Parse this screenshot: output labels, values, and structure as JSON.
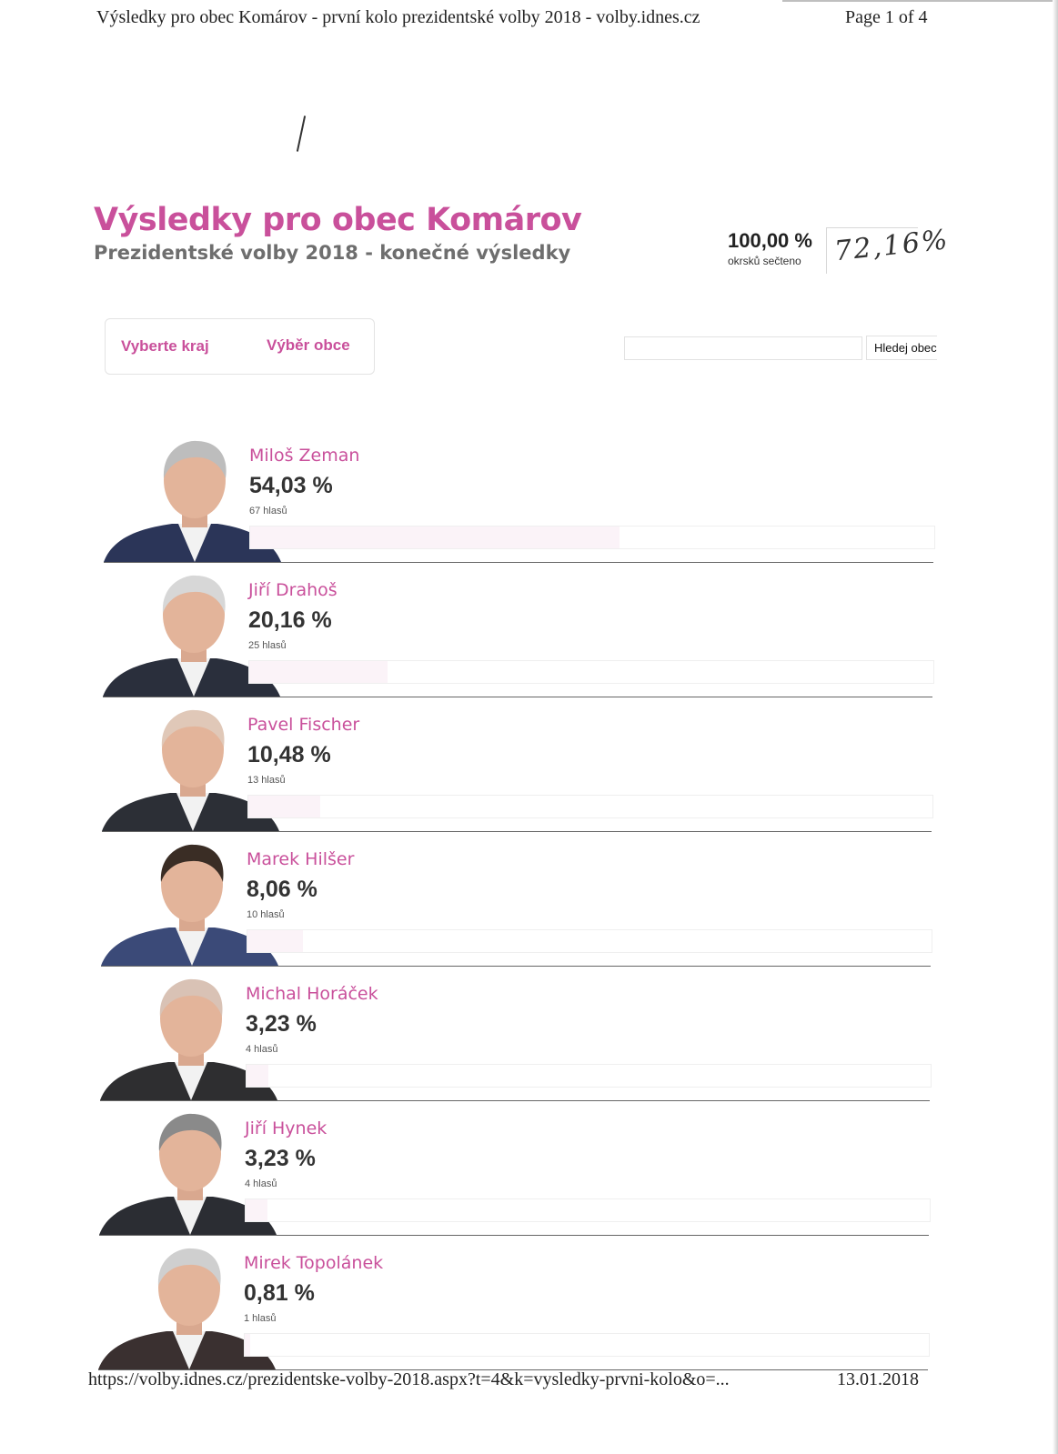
{
  "print_header": {
    "title": "Výsledky pro obec Komárov - první kolo prezidentské volby 2018 - volby.idnes.cz",
    "page": "Page 1 of 4"
  },
  "page_title": "Výsledky pro obec Komárov",
  "page_subtitle": "Prezidentské volby 2018 - konečné výsledky",
  "counted": {
    "value": "100,00 %",
    "label": "okrsků sečteno"
  },
  "handwritten_note": "72,16%",
  "selectors": {
    "region": "Vyberte kraj",
    "municipality": "Výběr obce"
  },
  "search": {
    "placeholder": "",
    "button": "Hledej obec"
  },
  "candidates": [
    {
      "name": "Miloš Zeman",
      "percent": "54,03 %",
      "votes": "67 hlasů",
      "share": 54.03,
      "suit": "#2b3558",
      "hair": "#bdbdbd"
    },
    {
      "name": "Jiří Drahoš",
      "percent": "20,16 %",
      "votes": "25 hlasů",
      "share": 20.16,
      "suit": "#2a2f3c",
      "hair": "#d7d7d7"
    },
    {
      "name": "Pavel Fischer",
      "percent": "10,48 %",
      "votes": "13 hlasů",
      "share": 10.48,
      "suit": "#2c2f36",
      "hair": "#e0c8b8"
    },
    {
      "name": "Marek Hilšer",
      "percent": "8,06 %",
      "votes": "10 hlasů",
      "share": 8.06,
      "suit": "#3b4a78",
      "hair": "#3a2d25"
    },
    {
      "name": "Michal Horáček",
      "percent": "3,23 %",
      "votes": "4 hlasů",
      "share": 3.23,
      "suit": "#2e2e30",
      "hair": "#d9c2b5"
    },
    {
      "name": "Jiří Hynek",
      "percent": "3,23 %",
      "votes": "4 hlasů",
      "share": 3.23,
      "suit": "#2b2d33",
      "hair": "#8a8a8a"
    },
    {
      "name": "Mirek Topolánek",
      "percent": "0,81 %",
      "votes": "1 hlasů",
      "share": 0.81,
      "suit": "#3a3030",
      "hair": "#cfcfcf"
    }
  ],
  "print_footer": {
    "url": "https://volby.idnes.cz/prezidentske-volby-2018.aspx?t=4&k=vysledky-prvni-kolo&o=...",
    "date": "13.01.2018"
  },
  "colors": {
    "accent": "#c9509b",
    "subtitle": "#6e6e6e"
  }
}
